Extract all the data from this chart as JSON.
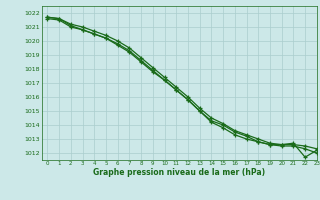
{
  "title": "Graphe pression niveau de la mer (hPa)",
  "bg_color": "#cce8e8",
  "grid_color": "#aacece",
  "line_color": "#1a6b1a",
  "xlim": [
    -0.5,
    23
  ],
  "ylim": [
    1011.5,
    1022.5
  ],
  "yticks": [
    1012,
    1013,
    1014,
    1015,
    1016,
    1017,
    1018,
    1019,
    1020,
    1021,
    1022
  ],
  "xticks": [
    0,
    1,
    2,
    3,
    4,
    5,
    6,
    7,
    8,
    9,
    10,
    11,
    12,
    13,
    14,
    15,
    16,
    17,
    18,
    19,
    20,
    21,
    22,
    23
  ],
  "line1_x": [
    0,
    1,
    2,
    3,
    4,
    5,
    6,
    7,
    8,
    9,
    10,
    11,
    12,
    13,
    14,
    15,
    16,
    17,
    18,
    19,
    20,
    21,
    22,
    23
  ],
  "line1_y": [
    1021.7,
    1021.6,
    1021.1,
    1020.8,
    1020.5,
    1020.2,
    1019.7,
    1019.2,
    1018.5,
    1017.8,
    1017.2,
    1016.5,
    1015.8,
    1015.0,
    1014.3,
    1014.0,
    1013.5,
    1013.2,
    1012.8,
    1012.6,
    1012.5,
    1012.5,
    1012.3,
    1012.0
  ],
  "line2_x": [
    0,
    1,
    2,
    3,
    4,
    5,
    6,
    7,
    8,
    9,
    10,
    11,
    12,
    13,
    14,
    15,
    16,
    17,
    18,
    19,
    20,
    21,
    22,
    23
  ],
  "line2_y": [
    1021.7,
    1021.6,
    1021.2,
    1021.0,
    1020.7,
    1020.4,
    1020.0,
    1019.5,
    1018.8,
    1018.1,
    1017.4,
    1016.7,
    1016.0,
    1015.2,
    1014.5,
    1014.1,
    1013.6,
    1013.3,
    1013.0,
    1012.7,
    1012.6,
    1012.6,
    1012.5,
    1012.3
  ],
  "line3_x": [
    0,
    1,
    2,
    3,
    4,
    5,
    6,
    7,
    8,
    9,
    10,
    11,
    12,
    13,
    14,
    15,
    16,
    17,
    18,
    19,
    20,
    21,
    22,
    23
  ],
  "line3_y": [
    1021.6,
    1021.5,
    1021.0,
    1020.8,
    1020.5,
    1020.2,
    1019.8,
    1019.3,
    1018.6,
    1017.9,
    1017.2,
    1016.5,
    1015.8,
    1015.0,
    1014.2,
    1013.8,
    1013.3,
    1013.0,
    1012.8,
    1012.6,
    1012.6,
    1012.7,
    1011.7,
    1012.2
  ]
}
